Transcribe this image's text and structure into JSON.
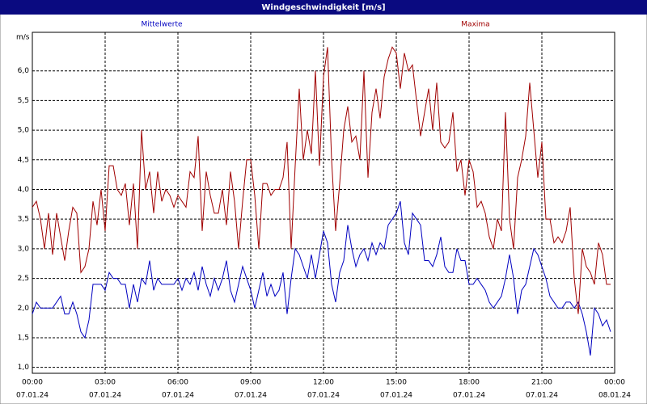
{
  "chart_data": {
    "type": "line",
    "title": "Windgeschwindigkeit [m/s]",
    "y_label": "m/s",
    "x": [
      0,
      10,
      20,
      30,
      40,
      50,
      60,
      70,
      80,
      90,
      100,
      110,
      120,
      130,
      140,
      150,
      160,
      170,
      180,
      190,
      200,
      210,
      220,
      230,
      240,
      250,
      260,
      270,
      280,
      290,
      300,
      310,
      320,
      330,
      340,
      350,
      360,
      370,
      380,
      390,
      400,
      410,
      420,
      430,
      440,
      450,
      460,
      470,
      480,
      490,
      500,
      510,
      520,
      530,
      540,
      550,
      560,
      570,
      580,
      590,
      600,
      610,
      620,
      630,
      640,
      650,
      660,
      670,
      680,
      690,
      700,
      710,
      720,
      730,
      740,
      750,
      760,
      770,
      780,
      790,
      800,
      810,
      820,
      830,
      840,
      850,
      860,
      870,
      880,
      890,
      900,
      910,
      920,
      930,
      940,
      950,
      960,
      970,
      980,
      990,
      1000,
      1010,
      1020,
      1030,
      1040,
      1050,
      1060,
      1070,
      1080,
      1090,
      1100,
      1110,
      1120,
      1130,
      1140,
      1150,
      1160,
      1170,
      1180,
      1190,
      1200,
      1210,
      1220,
      1230,
      1240,
      1250,
      1260,
      1270,
      1280,
      1290,
      1300,
      1310,
      1320,
      1330,
      1340,
      1350,
      1360,
      1370,
      1380,
      1390,
      1400,
      1410,
      1420,
      1430
    ],
    "series": [
      {
        "name": "Mittelwerte",
        "color": "#0000c0",
        "values": [
          1.9,
          2.1,
          2.0,
          2.0,
          2.0,
          2.0,
          2.1,
          2.2,
          1.9,
          1.9,
          2.1,
          1.9,
          1.6,
          1.5,
          1.8,
          2.4,
          2.4,
          2.4,
          2.3,
          2.6,
          2.5,
          2.5,
          2.4,
          2.4,
          2.0,
          2.4,
          2.1,
          2.5,
          2.4,
          2.8,
          2.3,
          2.5,
          2.4,
          2.4,
          2.4,
          2.4,
          2.5,
          2.3,
          2.5,
          2.4,
          2.6,
          2.3,
          2.7,
          2.4,
          2.2,
          2.5,
          2.3,
          2.5,
          2.8,
          2.3,
          2.1,
          2.4,
          2.7,
          2.5,
          2.3,
          2.0,
          2.3,
          2.6,
          2.2,
          2.4,
          2.2,
          2.3,
          2.6,
          1.9,
          2.5,
          3.0,
          2.9,
          2.7,
          2.5,
          2.9,
          2.5,
          2.9,
          3.3,
          3.1,
          2.4,
          2.1,
          2.6,
          2.8,
          3.4,
          3.0,
          2.7,
          2.9,
          3.0,
          2.8,
          3.1,
          2.9,
          3.1,
          3.0,
          3.4,
          3.5,
          3.6,
          3.8,
          3.1,
          2.9,
          3.6,
          3.5,
          3.4,
          2.8,
          2.8,
          2.7,
          2.9,
          3.2,
          2.7,
          2.6,
          2.6,
          3.0,
          2.8,
          2.8,
          2.4,
          2.4,
          2.5,
          2.4,
          2.3,
          2.1,
          2.0,
          2.1,
          2.2,
          2.5,
          2.9,
          2.5,
          1.9,
          2.3,
          2.4,
          2.7,
          3.0,
          2.9,
          2.7,
          2.5,
          2.2,
          2.1,
          2.0,
          2.0,
          2.1,
          2.1,
          2.0,
          2.1,
          1.9,
          1.6,
          1.2,
          2.0,
          1.9,
          1.7,
          1.8,
          1.6
        ]
      },
      {
        "name": "Maxima",
        "color": "#a00000",
        "values": [
          3.7,
          3.8,
          3.5,
          3.0,
          3.6,
          2.9,
          3.6,
          3.2,
          2.8,
          3.3,
          3.7,
          3.6,
          2.6,
          2.7,
          3.0,
          3.8,
          3.4,
          4.0,
          3.3,
          4.4,
          4.4,
          4.0,
          3.9,
          4.1,
          3.4,
          4.1,
          3.0,
          5.0,
          4.0,
          4.3,
          3.6,
          4.3,
          3.8,
          4.0,
          3.9,
          3.7,
          3.9,
          3.8,
          3.7,
          4.3,
          4.2,
          4.9,
          3.3,
          4.3,
          3.9,
          3.6,
          3.6,
          4.0,
          3.4,
          4.3,
          3.8,
          3.0,
          3.8,
          4.5,
          4.5,
          3.9,
          3.0,
          4.1,
          4.1,
          3.9,
          4.0,
          4.0,
          4.2,
          4.8,
          3.0,
          4.4,
          5.7,
          4.5,
          5.0,
          4.6,
          6.0,
          4.4,
          5.9,
          6.4,
          4.5,
          3.3,
          4.1,
          5.0,
          5.4,
          4.8,
          4.9,
          4.5,
          6.0,
          4.2,
          5.3,
          5.7,
          5.2,
          5.9,
          6.2,
          6.4,
          6.3,
          5.7,
          6.3,
          6.0,
          6.1,
          5.5,
          4.9,
          5.3,
          5.7,
          5.0,
          5.8,
          4.8,
          4.7,
          4.8,
          5.3,
          4.3,
          4.5,
          3.9,
          4.5,
          4.3,
          3.7,
          3.8,
          3.6,
          3.2,
          3.0,
          3.5,
          3.3,
          5.3,
          3.5,
          3.0,
          4.2,
          4.5,
          4.9,
          5.8,
          5.0,
          4.2,
          4.8,
          3.5,
          3.5,
          3.1,
          3.2,
          3.1,
          3.3,
          3.7,
          2.5,
          1.9,
          3.0,
          2.7,
          2.6,
          2.4,
          3.1,
          2.9,
          2.4,
          2.4
        ]
      }
    ],
    "xlim": [
      0,
      1440
    ],
    "xticks": [
      {
        "value": 0,
        "label": "00:00"
      },
      {
        "value": 180,
        "label": "03:00"
      },
      {
        "value": 360,
        "label": "06:00"
      },
      {
        "value": 540,
        "label": "09:00"
      },
      {
        "value": 720,
        "label": "12:00"
      },
      {
        "value": 900,
        "label": "15:00"
      },
      {
        "value": 1080,
        "label": "18:00"
      },
      {
        "value": 1260,
        "label": "21:00"
      },
      {
        "value": 1440,
        "label": "00:00"
      }
    ],
    "xtick_dates": [
      "07.01.24",
      "07.01.24",
      "07.01.24",
      "07.01.24",
      "07.01.24",
      "07.01.24",
      "07.01.24",
      "07.01.24",
      "08.01.24"
    ],
    "ylim": [
      0.9,
      6.65
    ],
    "yticks": [
      {
        "value": 1.0,
        "label": "1,0"
      },
      {
        "value": 1.5,
        "label": "1,5"
      },
      {
        "value": 2.0,
        "label": "2,0"
      },
      {
        "value": 2.5,
        "label": "2,5"
      },
      {
        "value": 3.0,
        "label": "3,0"
      },
      {
        "value": 3.5,
        "label": "3,5"
      },
      {
        "value": 4.0,
        "label": "4,0"
      },
      {
        "value": 4.5,
        "label": "4,5"
      },
      {
        "value": 5.0,
        "label": "5,0"
      },
      {
        "value": 5.5,
        "label": "5,5"
      },
      {
        "value": 6.0,
        "label": "6,0"
      }
    ],
    "grid": true
  }
}
